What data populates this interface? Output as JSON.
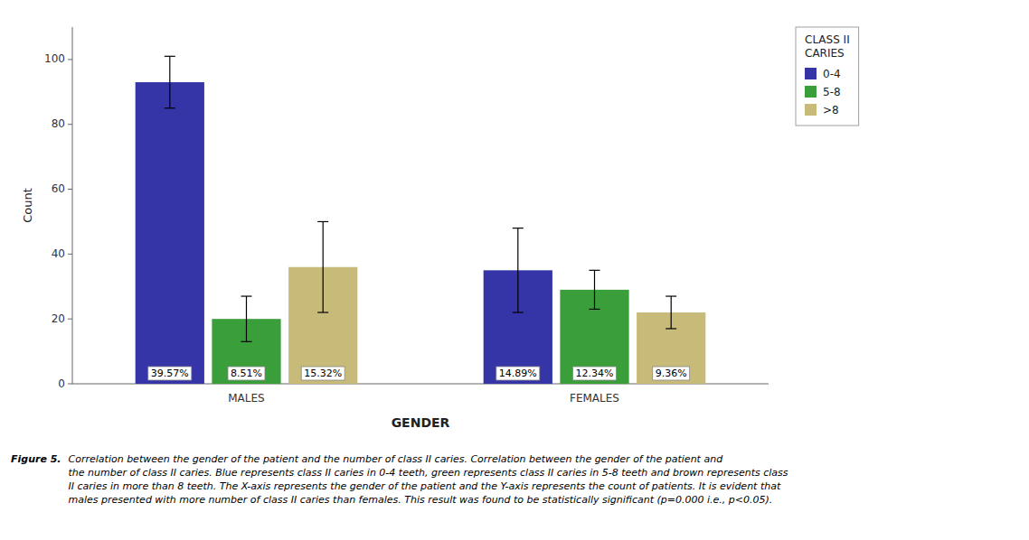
{
  "chart_data": {
    "type": "bar",
    "categories": [
      "MALES",
      "FEMALES"
    ],
    "series": [
      {
        "name": "0-4",
        "color": "#3535a8",
        "values": [
          93,
          35
        ],
        "errors": [
          8,
          13
        ],
        "percentages": [
          {
            "value": 39.57,
            "label": "39.57%"
          },
          {
            "value": 14.89,
            "label": "14.89%"
          }
        ]
      },
      {
        "name": "5-8",
        "color": "#3a9e3a",
        "values": [
          20,
          29
        ],
        "errors": [
          7,
          6
        ],
        "percentages": [
          {
            "value": 8.51,
            "label": "8.51%"
          },
          {
            "value": 12.34,
            "label": "12.34%"
          }
        ]
      },
      {
        "name": ">8",
        "color": "#c8bb7a",
        "values": [
          36,
          22
        ],
        "errors": [
          14,
          5
        ],
        "percentages": [
          {
            "value": 15.32,
            "label": "15.32%"
          },
          {
            "value": 9.36,
            "label": "9.36%"
          }
        ]
      }
    ],
    "xlabel": "GENDER",
    "ylabel": "Count",
    "ylim": [
      0,
      110
    ],
    "yticks": [
      0,
      20,
      40,
      60,
      80,
      100
    ],
    "grid": false,
    "legend": "right",
    "legend_title": "CLASS II\nCARIES",
    "caption_label": "Figure 5.",
    "caption": "Correlation between the gender of the patient and the number of class II caries. Correlation between the gender of the patient and\nthe number of class II caries. Blue represents class II caries in 0-4 teeth, green represents class II caries in 5-8 teeth and brown represents class\nII caries in more than 8 teeth. The X-axis represents the gender of the patient and the Y-axis represents the count of patients. It is evident that\nmales presented with more number of class II caries than females. This result was found to be statistically significant (p=0.000 i.e., p<0.05)."
  }
}
